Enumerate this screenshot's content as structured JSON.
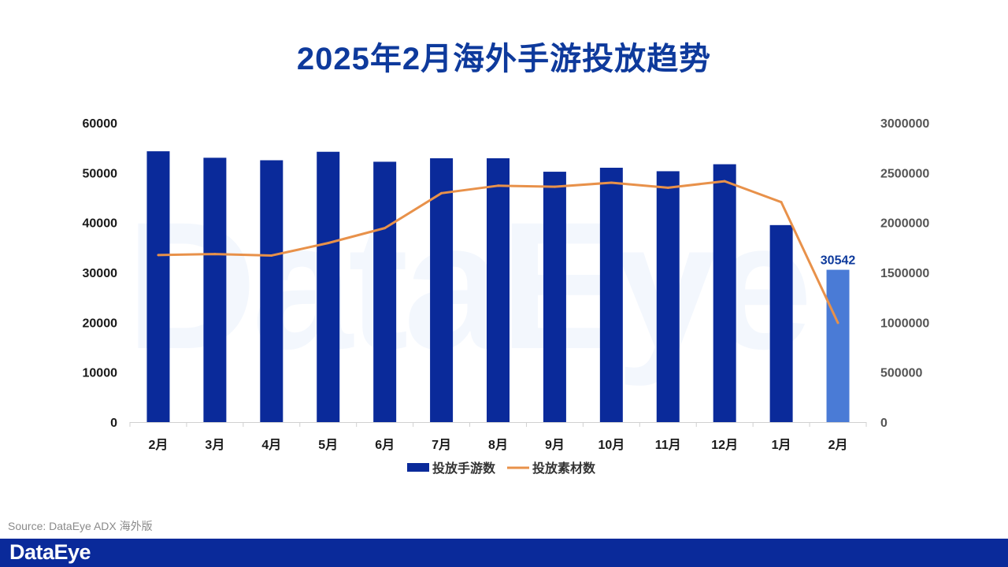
{
  "title": "2025年2月海外手游投放趋势",
  "watermark": "DataEye",
  "source": "Source: DataEye ADX 海外版",
  "footer_logo": "DataEye",
  "colors": {
    "title": "#0e3a9c",
    "bar": "#0a2a9a",
    "bar_highlight": "#4a7bd6",
    "line": "#e8914a",
    "footer": "#0a2a9a",
    "axis_text": "#1a1a1a",
    "right_axis_text": "#555555",
    "data_label": "#0e3a9c"
  },
  "chart_data": {
    "type": "bar",
    "categories": [
      "2月",
      "3月",
      "4月",
      "5月",
      "6月",
      "7月",
      "8月",
      "9月",
      "10月",
      "11月",
      "12月",
      "1月",
      "2月"
    ],
    "series": [
      {
        "name": "投放手游数",
        "type": "bar",
        "axis": "left",
        "values": [
          54300,
          53000,
          52500,
          54200,
          52200,
          52900,
          52900,
          50200,
          51000,
          50300,
          51700,
          39500,
          30542
        ]
      },
      {
        "name": "投放素材数",
        "type": "line",
        "axis": "right",
        "values": [
          1675000,
          1685000,
          1670000,
          1795000,
          1945000,
          2295000,
          2370000,
          2360000,
          2400000,
          2350000,
          2415000,
          2205000,
          995000
        ]
      }
    ],
    "left_axis": {
      "ticks": [
        "0",
        "10000",
        "20000",
        "30000",
        "40000",
        "50000",
        "60000"
      ],
      "ylim": [
        0,
        60000
      ]
    },
    "right_axis": {
      "ticks": [
        "0",
        "500000",
        "1000000",
        "1500000",
        "2000000",
        "2500000",
        "3000000"
      ],
      "ylim": [
        0,
        3000000
      ]
    },
    "data_labels": [
      {
        "index": 12,
        "text": "30542"
      }
    ],
    "highlight_index": 12,
    "legend": {
      "position": "bottom"
    },
    "grid": false
  }
}
